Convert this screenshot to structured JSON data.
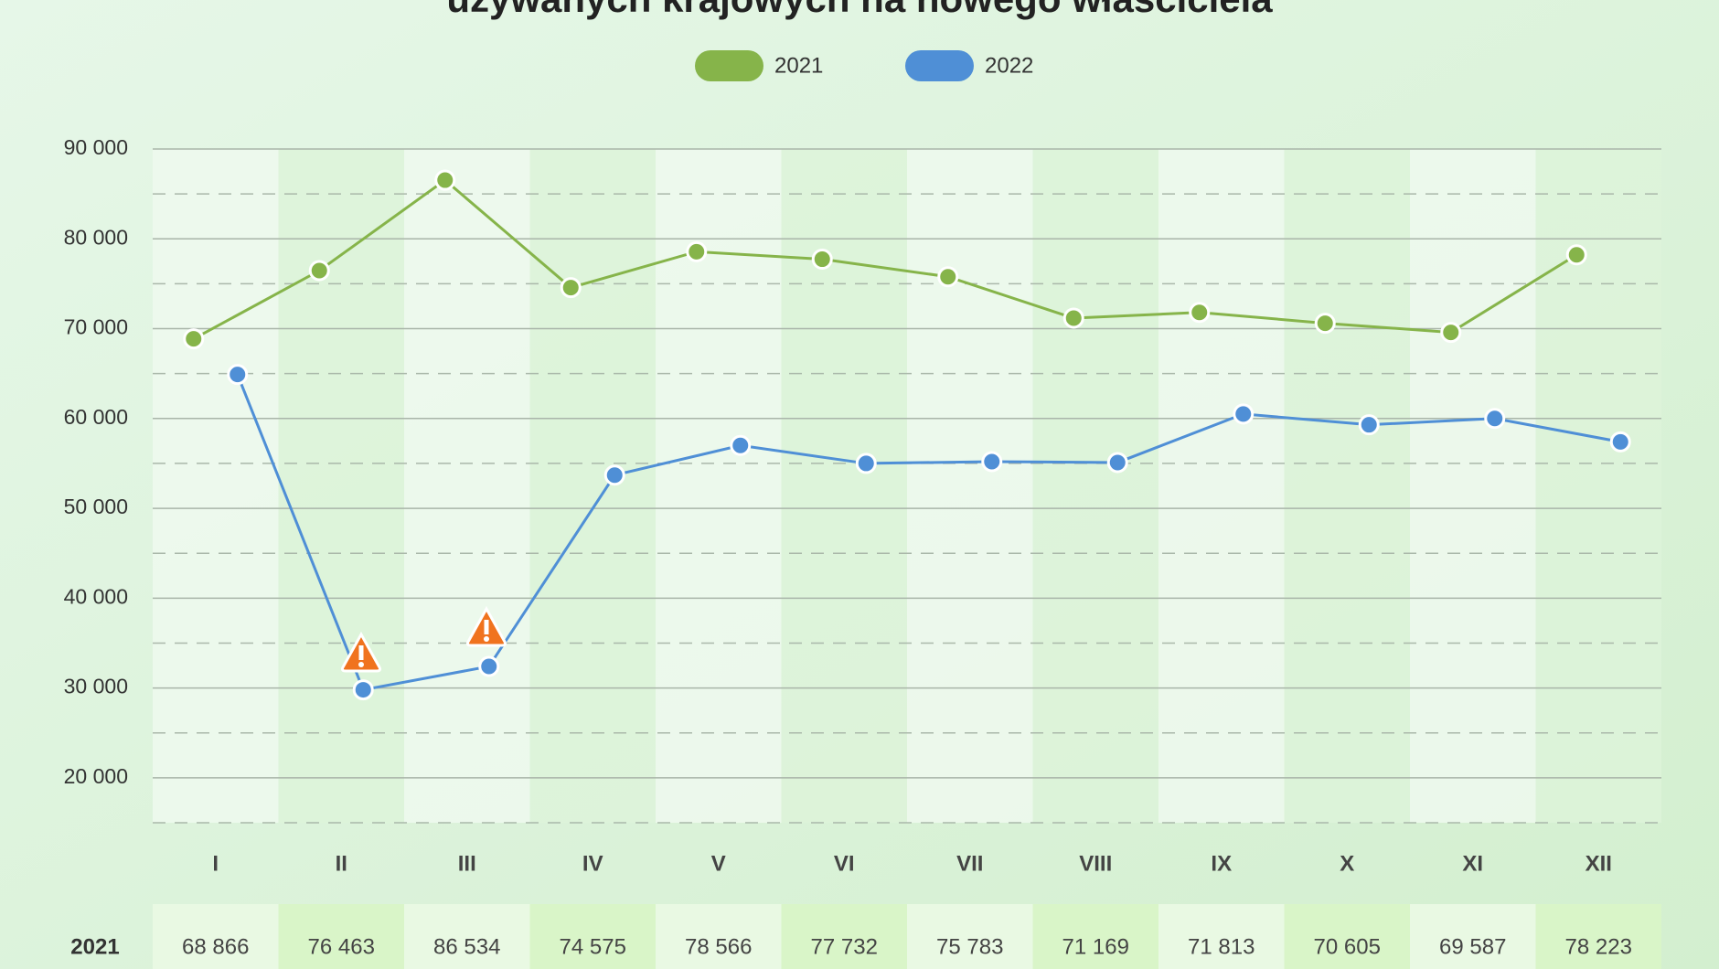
{
  "chart_data": {
    "type": "line",
    "title": "używanych krajowych na nowego właściciela",
    "categories": [
      "I",
      "II",
      "III",
      "IV",
      "V",
      "VI",
      "VII",
      "VIII",
      "IX",
      "X",
      "XI",
      "XII"
    ],
    "series": [
      {
        "name": "2021",
        "color": "#86b44a",
        "values": [
          68866,
          76463,
          86534,
          74575,
          78566,
          77732,
          75783,
          71169,
          71813,
          70605,
          69587,
          78223
        ],
        "value_labels": [
          "68 866",
          "76 463",
          "86 534",
          "74 575",
          "78 566",
          "77 732",
          "75 783",
          "71 169",
          "71 813",
          "70 605",
          "69 587",
          "78 223"
        ]
      },
      {
        "name": "2022",
        "color": "#4f8fd6",
        "values": [
          64900,
          29800,
          32400,
          53700,
          57000,
          55000,
          55200,
          55100,
          60500,
          59300,
          60000,
          57400
        ]
      }
    ],
    "ylim": [
      15000,
      90000
    ],
    "yticks": [
      {
        "value": 20000,
        "label": "20 000"
      },
      {
        "value": 30000,
        "label": "30 000"
      },
      {
        "value": 40000,
        "label": "40 000"
      },
      {
        "value": 50000,
        "label": "50 000"
      },
      {
        "value": 60000,
        "label": "60 000"
      },
      {
        "value": 70000,
        "label": "70 000"
      },
      {
        "value": 80000,
        "label": "80 000"
      },
      {
        "value": 90000,
        "label": "90 000"
      }
    ],
    "minor_yticks": [
      15000,
      25000,
      35000,
      45000,
      55000,
      65000,
      75000,
      85000
    ],
    "grid": true
  }
}
